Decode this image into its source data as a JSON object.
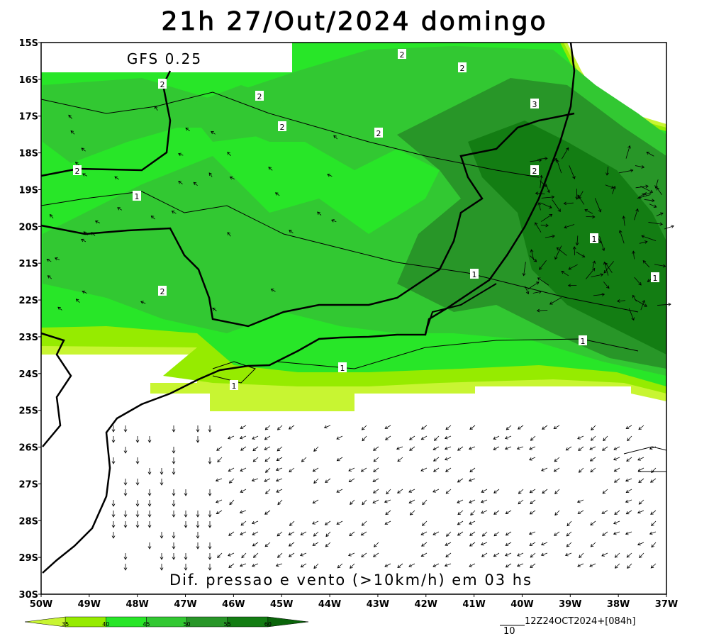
{
  "title": "21h 27/Out/2024 domingo",
  "model": "GFS 0.25",
  "caption": "Dif. pressao e vento (>10km/h) em 03 hs",
  "lat_labels": [
    "15S",
    "16S",
    "17S",
    "18S",
    "19S",
    "20S",
    "21S",
    "22S",
    "23S",
    "24S",
    "25S",
    "26S",
    "27S",
    "28S",
    "29S",
    "30S"
  ],
  "lon_labels": [
    "50W",
    "49W",
    "48W",
    "47W",
    "46W",
    "45W",
    "44W",
    "43W",
    "42W",
    "41W",
    "40W",
    "39W",
    "38W",
    "37W"
  ],
  "colorbar_labels": [
    "35",
    "40",
    "45",
    "50",
    "55",
    "60"
  ],
  "vector_scale": "10",
  "run_info": "12Z24OCT2024+[084h]",
  "contour_labels": [
    "2",
    "2",
    "2",
    "2",
    "2",
    "2",
    "3",
    "2",
    "2",
    "1",
    "1",
    "1",
    "2",
    "1",
    "1",
    "1",
    "1"
  ]
}
